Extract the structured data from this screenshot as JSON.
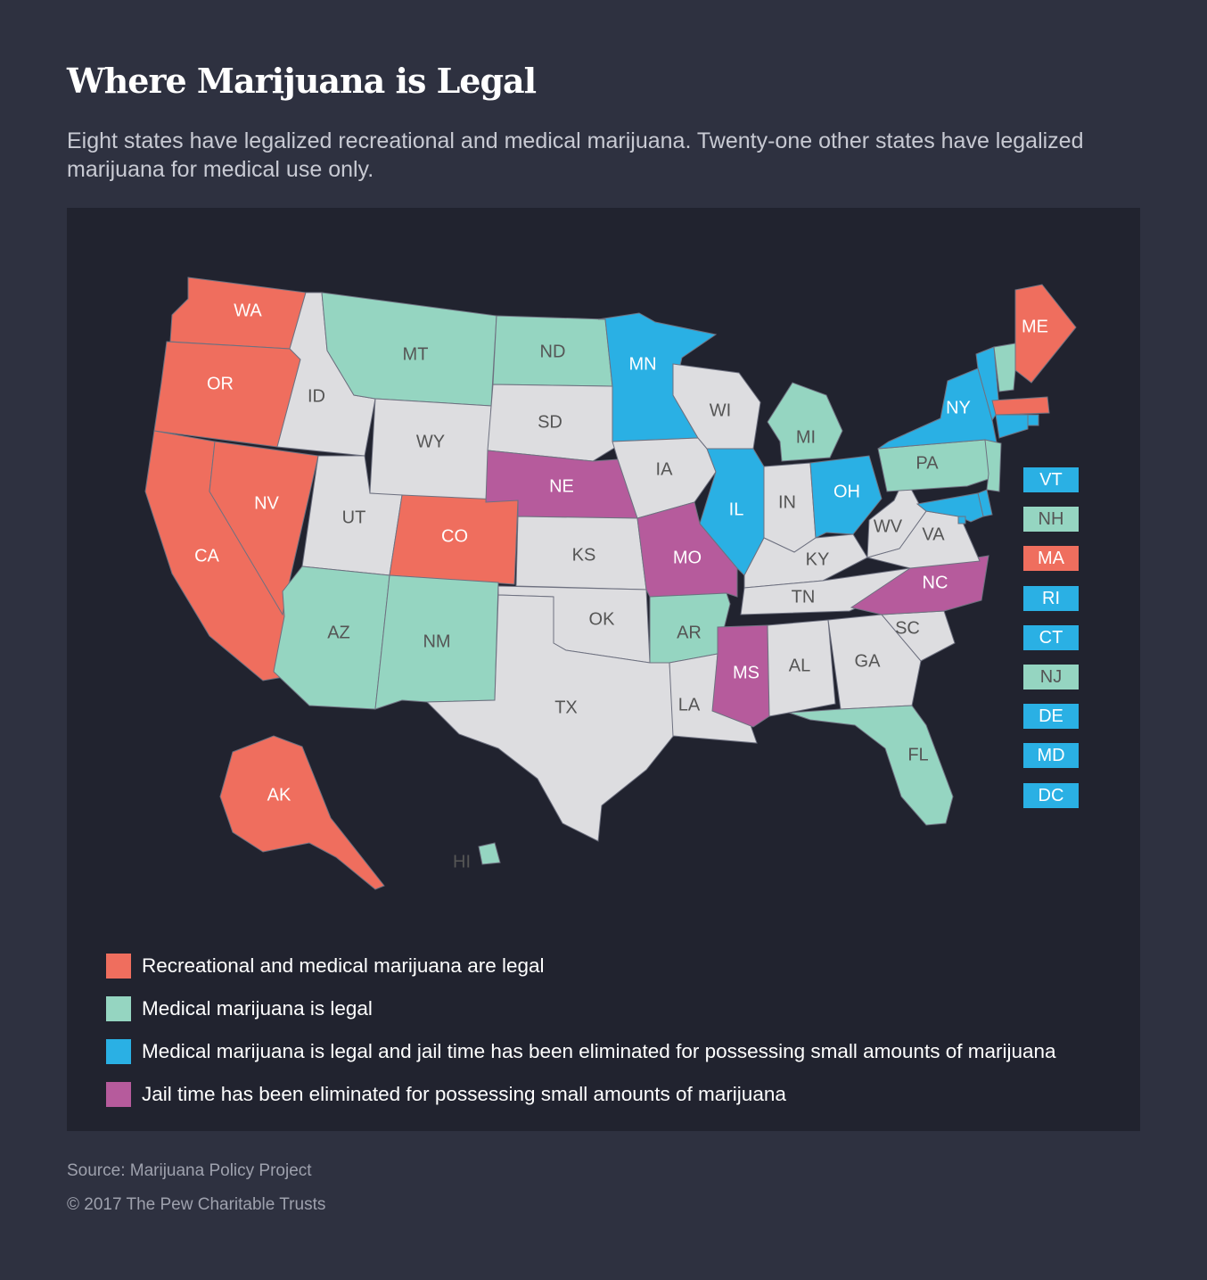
{
  "title": "Where Marijuana is Legal",
  "subtitle": "Eight states have legalized recreational and medical marijuana. Twenty-one other states have legalized marijuana for medical use only.",
  "colors": {
    "recreational": "#ef6e5e",
    "medical": "#95d5c1",
    "medical_decrim": "#2ab0e4",
    "decrim": "#b65b9c",
    "none": "#dddde0",
    "label_dark": "#555555",
    "label_light": "#ffffff",
    "background": "#2e3140",
    "panel": "#21232f"
  },
  "states": [
    {
      "abbr": "WA",
      "category": "recreational"
    },
    {
      "abbr": "OR",
      "category": "recreational"
    },
    {
      "abbr": "CA",
      "category": "recreational"
    },
    {
      "abbr": "NV",
      "category": "recreational"
    },
    {
      "abbr": "ID",
      "category": "none"
    },
    {
      "abbr": "MT",
      "category": "medical"
    },
    {
      "abbr": "WY",
      "category": "none"
    },
    {
      "abbr": "UT",
      "category": "none"
    },
    {
      "abbr": "CO",
      "category": "recreational"
    },
    {
      "abbr": "AZ",
      "category": "medical"
    },
    {
      "abbr": "NM",
      "category": "medical"
    },
    {
      "abbr": "ND",
      "category": "medical"
    },
    {
      "abbr": "SD",
      "category": "none"
    },
    {
      "abbr": "NE",
      "category": "decrim"
    },
    {
      "abbr": "KS",
      "category": "none"
    },
    {
      "abbr": "OK",
      "category": "none"
    },
    {
      "abbr": "TX",
      "category": "none"
    },
    {
      "abbr": "MN",
      "category": "medical_decrim"
    },
    {
      "abbr": "IA",
      "category": "none"
    },
    {
      "abbr": "MO",
      "category": "decrim"
    },
    {
      "abbr": "AR",
      "category": "medical"
    },
    {
      "abbr": "LA",
      "category": "none"
    },
    {
      "abbr": "WI",
      "category": "none"
    },
    {
      "abbr": "IL",
      "category": "medical_decrim"
    },
    {
      "abbr": "MI",
      "category": "medical"
    },
    {
      "abbr": "IN",
      "category": "none"
    },
    {
      "abbr": "OH",
      "category": "medical_decrim"
    },
    {
      "abbr": "KY",
      "category": "none"
    },
    {
      "abbr": "TN",
      "category": "none"
    },
    {
      "abbr": "MS",
      "category": "decrim"
    },
    {
      "abbr": "AL",
      "category": "none"
    },
    {
      "abbr": "GA",
      "category": "none"
    },
    {
      "abbr": "FL",
      "category": "medical"
    },
    {
      "abbr": "SC",
      "category": "none"
    },
    {
      "abbr": "NC",
      "category": "decrim"
    },
    {
      "abbr": "VA",
      "category": "none"
    },
    {
      "abbr": "WV",
      "category": "none"
    },
    {
      "abbr": "PA",
      "category": "medical"
    },
    {
      "abbr": "NY",
      "category": "medical_decrim"
    },
    {
      "abbr": "ME",
      "category": "recreational"
    },
    {
      "abbr": "AK",
      "category": "recreational"
    },
    {
      "abbr": "HI",
      "category": "medical"
    }
  ],
  "small_states": [
    {
      "abbr": "VT",
      "category": "medical_decrim"
    },
    {
      "abbr": "NH",
      "category": "medical"
    },
    {
      "abbr": "MA",
      "category": "recreational"
    },
    {
      "abbr": "RI",
      "category": "medical_decrim"
    },
    {
      "abbr": "CT",
      "category": "medical_decrim"
    },
    {
      "abbr": "NJ",
      "category": "medical"
    },
    {
      "abbr": "DE",
      "category": "medical_decrim"
    },
    {
      "abbr": "MD",
      "category": "medical_decrim"
    },
    {
      "abbr": "DC",
      "category": "medical_decrim"
    }
  ],
  "legend": [
    {
      "category": "recreational",
      "label": "Recreational and medical marijuana are legal"
    },
    {
      "category": "medical",
      "label": "Medical marijuana is legal"
    },
    {
      "category": "medical_decrim",
      "label": "Medical marijuana is legal and jail time has been eliminated for possessing small amounts of marijuana"
    },
    {
      "category": "decrim",
      "label": "Jail time has been eliminated for possessing small amounts of marijuana"
    }
  ],
  "source": "Source: Marijuana Policy Project",
  "copyright": "© 2017 The Pew Charitable Trusts"
}
